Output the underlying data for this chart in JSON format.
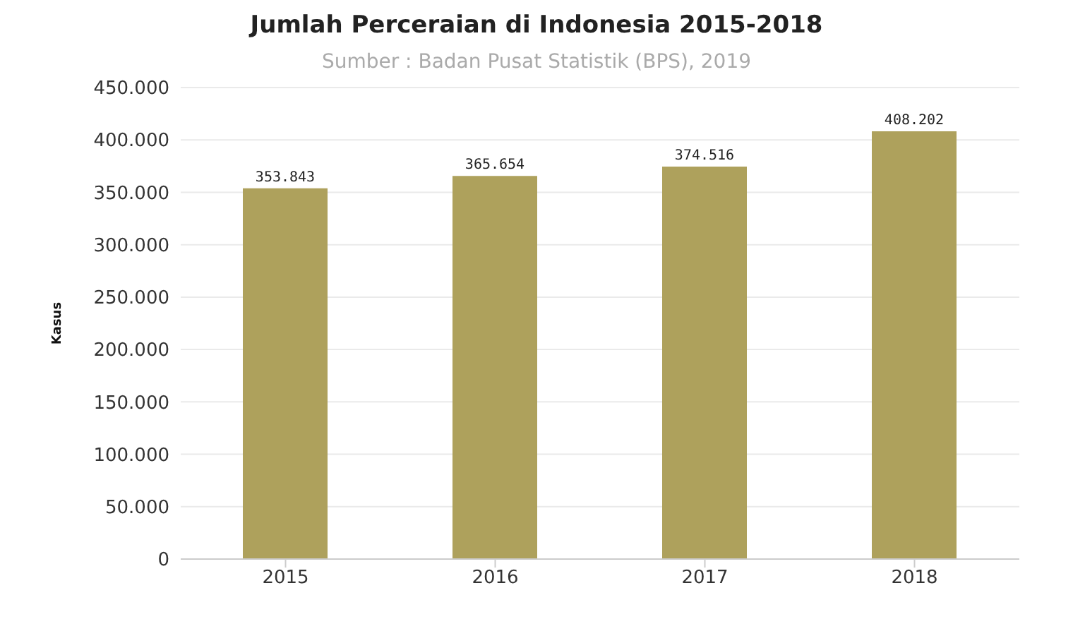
{
  "chart_data": {
    "type": "bar",
    "title": "Jumlah Perceraian di Indonesia 2015-2018",
    "subtitle": "Sumber : Badan Pusat Statistik (BPS), 2019",
    "ylabel": "Kasus",
    "categories": [
      "2015",
      "2016",
      "2017",
      "2018"
    ],
    "values": [
      353843,
      365654,
      374516,
      408202
    ],
    "value_labels": [
      "353.843",
      "365.654",
      "374.516",
      "408.202"
    ],
    "color": "#aea15c",
    "ylim": [
      0,
      450000
    ],
    "yticks": [
      {
        "value": 0,
        "label": "0"
      },
      {
        "value": 50000,
        "label": "50.000"
      },
      {
        "value": 100000,
        "label": "100.000"
      },
      {
        "value": 150000,
        "label": "150.000"
      },
      {
        "value": 200000,
        "label": "200.000"
      },
      {
        "value": 250000,
        "label": "250.000"
      },
      {
        "value": 300000,
        "label": "300.000"
      },
      {
        "value": 350000,
        "label": "350.000"
      },
      {
        "value": 400000,
        "label": "400.000"
      },
      {
        "value": 450000,
        "label": "450.000"
      }
    ],
    "grid": "y",
    "legend": false
  }
}
